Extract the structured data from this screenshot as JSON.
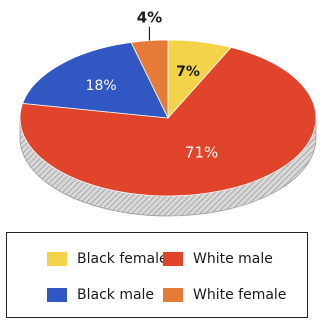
{
  "chart_data": {
    "type": "pie",
    "title": "",
    "categories": [
      "Black female",
      "White male",
      "Black male",
      "White female"
    ],
    "values": [
      7,
      71,
      18,
      4
    ],
    "labels": [
      "7%",
      "71%",
      "18%",
      "4%"
    ],
    "colors": {
      "Black female": "#f3d34a",
      "White male": "#e0452b",
      "Black male": "#3057c2",
      "White female": "#e57b37"
    },
    "style": "3d-tilted",
    "legend_placement": "bottom"
  },
  "legend": {
    "items": [
      {
        "label": "Black female",
        "color": "#f3d34a"
      },
      {
        "label": "White male",
        "color": "#e0452b"
      },
      {
        "label": "Black male",
        "color": "#3057c2"
      },
      {
        "label": "White female",
        "color": "#e57b37"
      }
    ]
  }
}
